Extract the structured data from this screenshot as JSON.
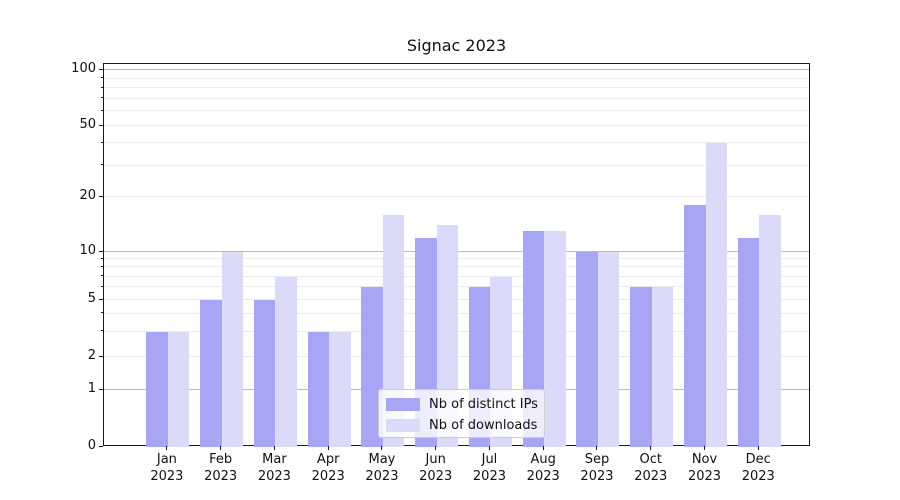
{
  "chart_data": {
    "type": "bar",
    "title": "Signac 2023",
    "categories": [
      "Jan",
      "Feb",
      "Mar",
      "Apr",
      "May",
      "Jun",
      "Jul",
      "Aug",
      "Sep",
      "Oct",
      "Nov",
      "Dec"
    ],
    "year": "2023",
    "series": [
      {
        "name": "Nb of distinct IPs",
        "color": "#a6a6f4",
        "values": [
          3,
          5,
          5,
          3,
          6,
          12,
          6,
          13,
          10,
          6,
          18,
          12
        ]
      },
      {
        "name": "Nb of downloads",
        "color": "#dbdbf9",
        "values": [
          3,
          10,
          7,
          3,
          16,
          14,
          7,
          13,
          10,
          6,
          40,
          16
        ]
      }
    ],
    "xlabel": "",
    "ylabel": "",
    "yscale": "symlog",
    "ylim": [
      0,
      108
    ],
    "y_ticks": [
      0,
      1,
      2,
      5,
      10,
      20,
      50,
      100
    ],
    "y_minor_ticks": [
      3,
      4,
      6,
      7,
      8,
      9,
      30,
      40,
      60,
      70,
      80,
      90
    ],
    "grid": "horizontal",
    "legend_location": "lower center"
  },
  "style_colors": {
    "decade_gridline": "#bcbcbc",
    "minor_gridline": "#ececec",
    "axis_spine": "#1a1a1a"
  }
}
